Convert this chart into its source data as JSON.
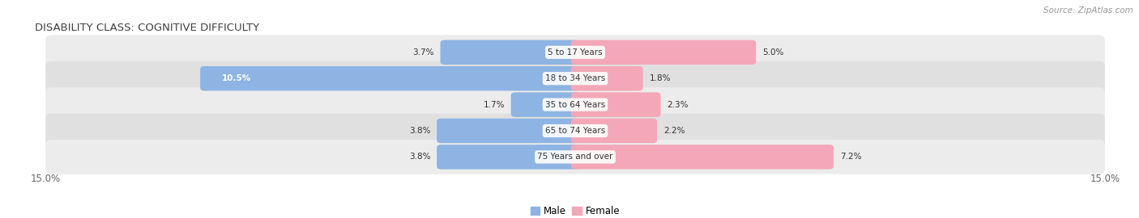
{
  "title": "DISABILITY CLASS: COGNITIVE DIFFICULTY",
  "source_text": "Source: ZipAtlas.com",
  "categories": [
    "5 to 17 Years",
    "18 to 34 Years",
    "35 to 64 Years",
    "65 to 74 Years",
    "75 Years and over"
  ],
  "male_values": [
    3.7,
    10.5,
    1.7,
    3.8,
    3.8
  ],
  "female_values": [
    5.0,
    1.8,
    2.3,
    2.2,
    7.2
  ],
  "male_color": "#8db4e2",
  "female_color": "#f4a7b9",
  "row_bg_colors": [
    "#ececec",
    "#e0e0e0",
    "#ececec",
    "#e0e0e0",
    "#ececec"
  ],
  "title_color": "#404040",
  "label_color": "#333333",
  "axis_label_color": "#666666",
  "center_label_color": "#333333",
  "male_text_color_threshold": 5.0,
  "legend_male_label": "Male",
  "legend_female_label": "Female",
  "xlim": 15.0,
  "figsize": [
    14.06,
    2.7
  ],
  "dpi": 100
}
